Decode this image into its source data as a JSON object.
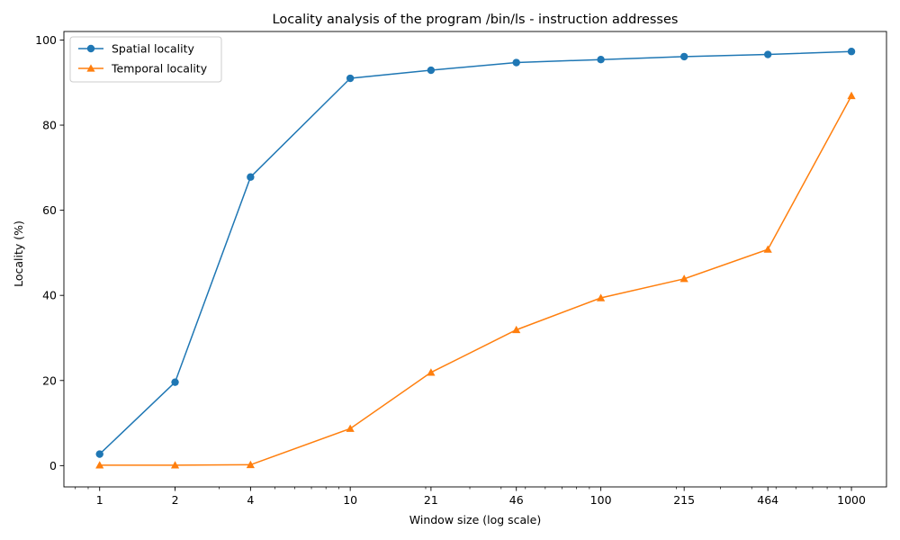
{
  "chart_data": {
    "type": "line",
    "title": "Locality analysis of the program /bin/ls - instruction addresses",
    "xlabel": "Window size (log scale)",
    "ylabel": "Locality (%)",
    "xscale": "log",
    "xlim": [
      0.72,
      1380
    ],
    "ylim": [
      -5,
      102
    ],
    "x": [
      1,
      2,
      4,
      10,
      21,
      46,
      100,
      215,
      464,
      1000
    ],
    "xticklabels": [
      "1",
      "2",
      "4",
      "10",
      "21",
      "46",
      "100",
      "215",
      "464",
      "1000"
    ],
    "yticks": [
      0,
      20,
      40,
      60,
      80,
      100
    ],
    "yticklabels": [
      "0",
      "20",
      "40",
      "60",
      "80",
      "100"
    ],
    "grid": false,
    "legend_position": "top-left",
    "series": [
      {
        "name": "Spatial locality",
        "color": "#1f77b4",
        "marker": "circle",
        "values": [
          2.7,
          19.6,
          67.8,
          91.0,
          92.9,
          94.7,
          95.4,
          96.1,
          96.6,
          97.3
        ]
      },
      {
        "name": "Temporal locality",
        "color": "#ff7f0e",
        "marker": "triangle",
        "values": [
          0.1,
          0.1,
          0.2,
          8.7,
          21.9,
          31.9,
          39.4,
          43.9,
          50.8,
          86.9
        ]
      }
    ]
  }
}
